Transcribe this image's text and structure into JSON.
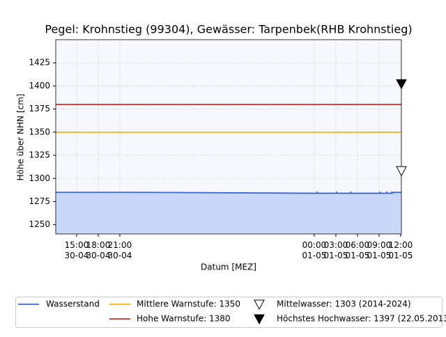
{
  "chart_data": {
    "type": "line",
    "title": "Pegel:  Krohnstieg (99304), Gewässer:  Tarpenbek(RHB Krohnstieg)",
    "xlabel": "Datum [MEZ]",
    "ylabel": "Höhe über NHN [cm]",
    "x": [
      "30-04 12:06",
      "30-04 23:45",
      "01-05 00:00",
      "01-05 00:20",
      "01-05 00:25",
      "01-05 00:30",
      "01-05 03:00",
      "01-05 03:05",
      "01-05 03:10",
      "01-05 05:00",
      "01-05 05:05",
      "01-05 05:10",
      "01-05 09:00",
      "01-05 09:05",
      "01-05 09:10",
      "01-05 10:00",
      "01-05 10:05",
      "01-05 10:10",
      "01-05 10:40",
      "01-05 10:45",
      "01-05 10:50",
      "01-05 11:00",
      "01-05 12:06"
    ],
    "series": [
      {
        "name": "Wasserstand",
        "color": "#3a66d6",
        "fill": "#c9d8f8",
        "values": [
          1285,
          1285,
          1284,
          1284,
          1285,
          1284,
          1284,
          1285,
          1284,
          1284,
          1285,
          1284,
          1284,
          1285,
          1284,
          1284,
          1285,
          1284,
          1284,
          1285,
          1284,
          1285,
          1285
        ]
      }
    ],
    "hlines": [
      {
        "name": "Mittlere Warnstufe: 1350",
        "color": "#ffb000",
        "value": 1350
      },
      {
        "name": "Hohe Warnstufe: 1380",
        "color": "#d22b2b",
        "value": 1380
      }
    ],
    "markers": [
      {
        "name": "Mittelwasser: 1303 (2014-2024)",
        "x": "01-05 12:06",
        "value": 1303,
        "filled": false
      },
      {
        "name": "Höchstes Hochwasser: 1397 (22.05.2013)",
        "x": "01-05 12:06",
        "value": 1397,
        "filled": true
      }
    ],
    "xlim": [
      "30-04 12:06",
      "01-05 12:06"
    ],
    "xticks": [
      {
        "value": "30-04 15:00",
        "label": [
          "15:00",
          "30-04"
        ]
      },
      {
        "value": "30-04 18:00",
        "label": [
          "18:00",
          "30-04"
        ]
      },
      {
        "value": "30-04 21:00",
        "label": [
          "21:00",
          "30-04"
        ]
      },
      {
        "value": "01-05 00:00",
        "label": [
          "00:00",
          "01-05"
        ]
      },
      {
        "value": "01-05 03:00",
        "label": [
          "03:00",
          "01-05"
        ]
      },
      {
        "value": "01-05 06:00",
        "label": [
          "06:00",
          "01-05"
        ]
      },
      {
        "value": "01-05 09:00",
        "label": [
          "09:00",
          "01-05"
        ]
      },
      {
        "value": "01-05 12:00",
        "label": [
          "12:00",
          "01-05"
        ]
      }
    ],
    "ylim": [
      1240,
      1450
    ],
    "yticks": [
      1250,
      1275,
      1300,
      1325,
      1350,
      1375,
      1400,
      1425
    ],
    "grid": true,
    "legend": "bottom"
  }
}
